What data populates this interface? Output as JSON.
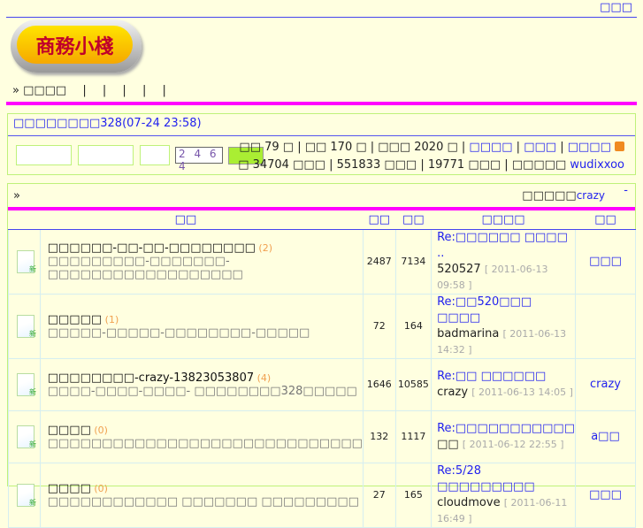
{
  "top": {
    "link": "□□□"
  },
  "logo": {
    "text": "商務小棧"
  },
  "nav": {
    "items": [
      "» □□□□",
      "|",
      "|",
      "|",
      "|",
      "|"
    ]
  },
  "notice": {
    "text": "□□□□□□□□328(07-24 23:58)"
  },
  "login": {
    "captcha": "2 4 6 4"
  },
  "stats": {
    "line1_parts": [
      "□□ 79 □ | □□ 170 □ | □□□ 2020 □ | ",
      "□□□□",
      " | ",
      "□□□",
      " | ",
      "□□□□"
    ],
    "line2": "□ 34704 □□□ | 551833 □□□ | 19771 □□□ | □□□□□ ",
    "newest_user": "wudixxoo"
  },
  "forum": {
    "header": "»",
    "moderator_label": "□□□□□",
    "moderator": "crazy",
    "collapse": "-",
    "columns": [
      "□□",
      "□□",
      "□□",
      "□□□□",
      "□□"
    ],
    "rows": [
      {
        "title": "□□□□□□-□□-□□-□□□□□□□□",
        "count": "(2)",
        "desc": "□□□□□□□□□-□□□□□□□-□□□□□□□□□□□□□□□□□□",
        "topics": "2487",
        "posts": "7134",
        "last_title": "Re:□□□□□□ □□□□ ..",
        "last_user": "520527",
        "last_date": "[ 2011-06-13 09:58 ]",
        "author": "□□□"
      },
      {
        "title": "□□□□□",
        "count": "(1)",
        "desc": "□□□□□-□□□□□-□□□□□□□□-□□□□□",
        "topics": "72",
        "posts": "164",
        "last_title": "Re:□□520□□□ □□□□",
        "last_user": "badmarina",
        "last_date": "[ 2011-06-13 14:32 ]",
        "author": ""
      },
      {
        "title": "□□□□□□□□-crazy-13823053807",
        "count": "(4)",
        "desc": "□□□□-□□□□-□□□□- □□□□□□□□328□□□□□",
        "topics": "1646",
        "posts": "10585",
        "last_title": "Re:□□ □□□□□□",
        "last_user": "crazy",
        "last_date": "[ 2011-06-13 14:05 ]",
        "author": "crazy"
      },
      {
        "title": "□□□□",
        "count": "(0)",
        "desc": "□□□□□□□□□□□□□□□□□□□□□□□□□□□□□",
        "topics": "132",
        "posts": "1117",
        "last_title": "Re:□□□□□□□□□□□",
        "last_user": "□□",
        "last_date": "[ 2011-06-12 22:55 ]",
        "author": "a□□"
      },
      {
        "title": "□□□□",
        "count": "(0)",
        "desc": "□□□□□□□□□□□□ □□□□□□□ □□□□□□□□□",
        "topics": "27",
        "posts": "165",
        "last_title": "Re:5/28 □□□□□□□□□",
        "last_user": "cloudmove",
        "last_date": "[ 2011-06-11 16:49 ]",
        "author": "□□□"
      }
    ]
  }
}
